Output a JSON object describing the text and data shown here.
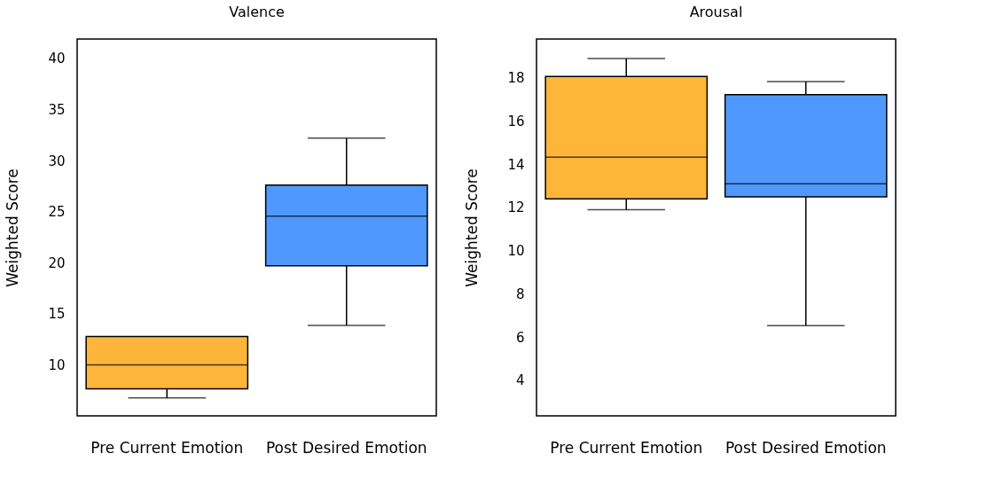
{
  "chart_data": [
    {
      "type": "box",
      "title": "Valence",
      "ylabel": "Weighted Score",
      "categories": [
        "Pre Current Emotion",
        "Post Desired Emotion"
      ],
      "colors": [
        "#fdb63a",
        "#4f98fe"
      ],
      "boxes": [
        {
          "low": 6.75,
          "q1": 7.65,
          "median": 10.0,
          "q3": 12.76,
          "high": 12.76
        },
        {
          "low": 13.85,
          "q1": 19.7,
          "median": 24.56,
          "q3": 27.6,
          "high": 32.2
        }
      ],
      "ylim": [
        5,
        41.9
      ],
      "yticks": [
        10,
        15,
        20,
        25,
        30,
        35,
        40
      ],
      "grid": false
    },
    {
      "type": "box",
      "title": "Arousal",
      "ylabel": "Weighted Score",
      "categories": [
        "Pre Current Emotion",
        "Post Desired Emotion"
      ],
      "colors": [
        "#fdb63a",
        "#4f98fe"
      ],
      "boxes": [
        {
          "low": 11.9,
          "q1": 12.4,
          "median": 14.33,
          "q3": 18.07,
          "high": 18.9
        },
        {
          "low": 6.53,
          "q1": 12.49,
          "median": 13.1,
          "q3": 17.22,
          "high": 17.83
        }
      ],
      "ylim": [
        2.35,
        19.8
      ],
      "yticks": [
        4,
        6,
        8,
        10,
        12,
        14,
        16,
        18
      ],
      "grid": false
    }
  ]
}
